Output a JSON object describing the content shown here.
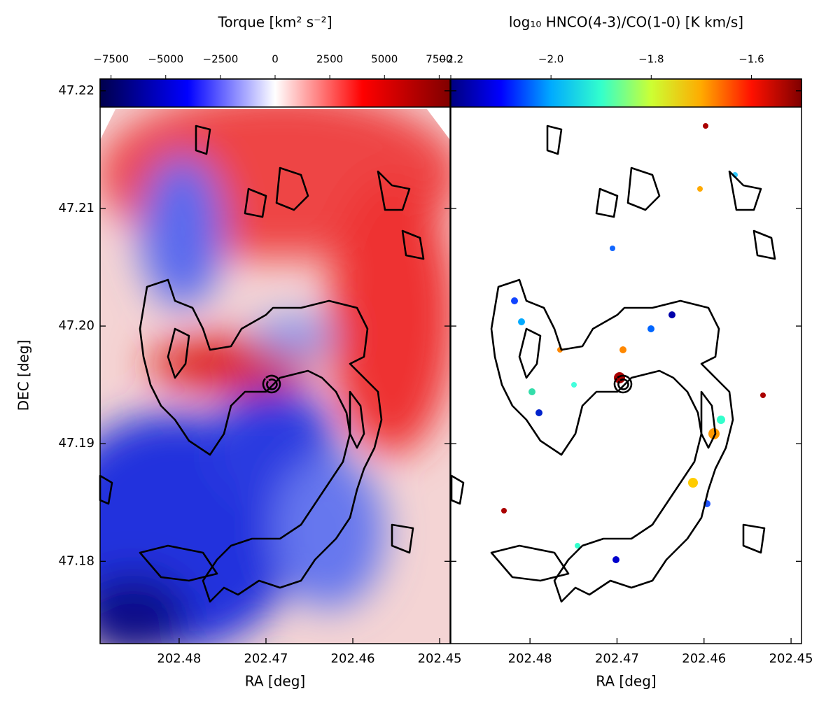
{
  "chart_data": [
    {
      "type": "heatmap",
      "colorbar_label": "Torque [km² s⁻²]",
      "colormap": "seismic",
      "clim": [
        -8000,
        8000
      ],
      "cticks": [
        {
          "value": -7500,
          "label": "−7500"
        },
        {
          "value": -5000,
          "label": "−5000"
        },
        {
          "value": -2500,
          "label": "−2500"
        },
        0,
        2500,
        5000,
        7500
      ],
      "xlabel": "RA [deg]",
      "ylabel": "DEC [deg]",
      "xlim": [
        202.4891,
        202.4488
      ],
      "ylim": [
        47.173,
        47.221
      ],
      "xticks": [
        202.48,
        202.47,
        202.46,
        202.45
      ],
      "yticks": [
        47.18,
        47.19,
        {
          "value": 47.2,
          "label": "47.20"
        },
        47.21,
        47.22
      ]
    },
    {
      "type": "heatmap",
      "colorbar_label": "log₁₀ HNCO(4-3)/CO(1-0) [K km/s]",
      "colormap": "jet",
      "clim": [
        -2.2,
        -1.5
      ],
      "cticks": [
        {
          "value": -2.2,
          "label": "−2.2"
        },
        {
          "value": -2.0,
          "label": "−2.0"
        },
        {
          "value": -1.8,
          "label": "−1.8"
        },
        {
          "value": -1.6,
          "label": "−1.6"
        }
      ],
      "xlabel": "RA [deg]",
      "xlim": [
        202.4891,
        202.4488
      ],
      "ylim": [
        47.173,
        47.221
      ],
      "xticks": [
        202.48,
        202.47,
        202.46,
        202.45
      ],
      "yticks": [
        47.18,
        47.19,
        47.2,
        47.21,
        47.22
      ]
    }
  ]
}
